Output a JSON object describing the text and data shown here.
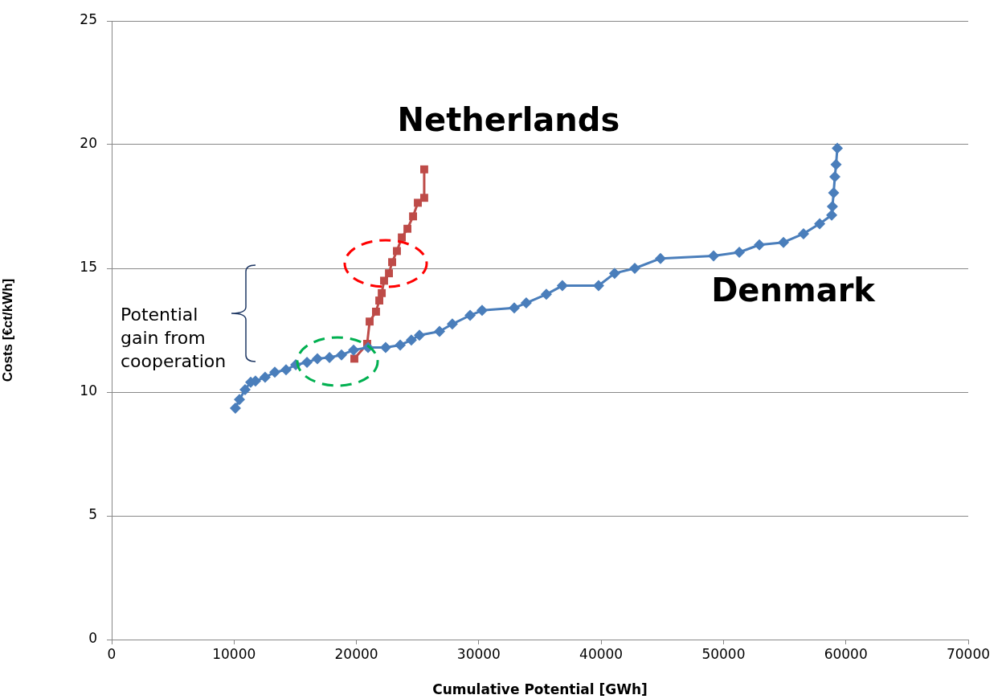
{
  "chart_data": {
    "type": "line",
    "xlabel": "Cumulative Potential [GWh]",
    "ylabel": "Costs [€ct/kWh]",
    "xlim": [
      0,
      70000
    ],
    "xticks": [
      0,
      10000,
      20000,
      30000,
      40000,
      50000,
      60000,
      70000
    ],
    "ylim": [
      0,
      25
    ],
    "yticks": [
      0,
      5,
      10,
      15,
      20,
      25
    ],
    "grid": "y",
    "legend": false,
    "annotations": [
      "Potential gain from cooperation"
    ],
    "series": [
      {
        "name": "Denmark",
        "color": "#4a7ebb",
        "marker": "diamond",
        "x": [
          10110,
          10440,
          10900,
          11360,
          11750,
          12540,
          13330,
          14250,
          15040,
          15960,
          16810,
          17800,
          18780,
          19770,
          20950,
          22390,
          23580,
          24490,
          25150,
          26790,
          27840,
          29290,
          30270,
          32900,
          33880,
          35520,
          36830,
          39790,
          41100,
          42750,
          44850,
          49190,
          51290,
          52930,
          54900,
          56540,
          57860,
          58840,
          58900,
          59000,
          59100,
          59200,
          59300
        ],
        "values": [
          9.35,
          9.7,
          10.1,
          10.4,
          10.45,
          10.6,
          10.8,
          10.9,
          11.1,
          11.2,
          11.35,
          11.4,
          11.5,
          11.7,
          11.8,
          11.8,
          11.9,
          12.1,
          12.3,
          12.45,
          12.75,
          13.1,
          13.3,
          13.4,
          13.6,
          13.95,
          14.3,
          14.3,
          14.8,
          15.0,
          15.4,
          15.5,
          15.65,
          15.95,
          16.05,
          16.4,
          16.8,
          17.15,
          17.5,
          18.05,
          18.7,
          19.2,
          19.85
        ]
      },
      {
        "name": "Netherlands",
        "color": "#be4b48",
        "marker": "square",
        "x": [
          19830,
          20880,
          21080,
          21600,
          21870,
          22070,
          22260,
          22660,
          22920,
          23310,
          23710,
          24170,
          24630,
          25020,
          25540,
          25540
        ],
        "values": [
          11.35,
          11.95,
          12.85,
          13.25,
          13.7,
          14.0,
          14.5,
          14.8,
          15.25,
          15.7,
          16.25,
          16.6,
          17.1,
          17.65,
          17.85,
          19.0
        ]
      }
    ]
  }
}
